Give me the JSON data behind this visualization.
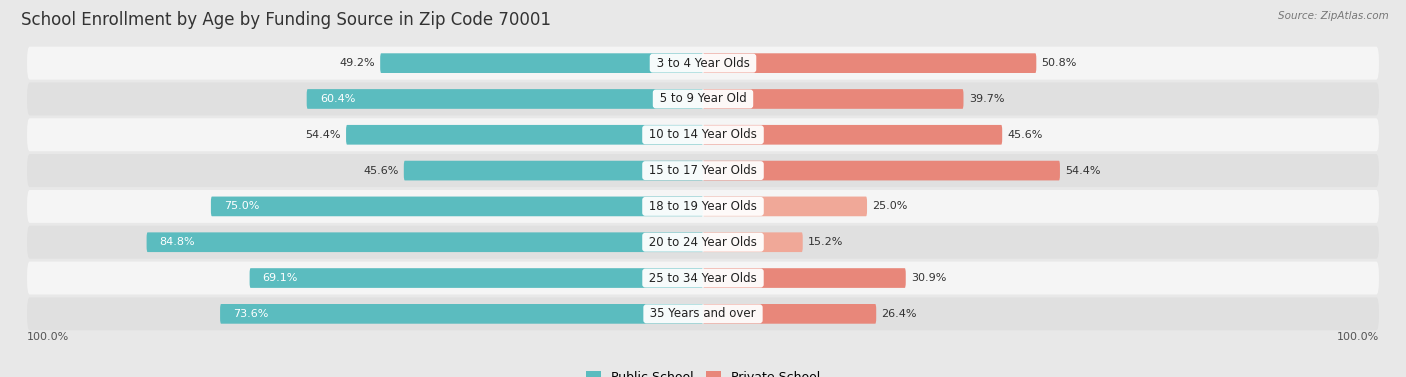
{
  "title": "School Enrollment by Age by Funding Source in Zip Code 70001",
  "source": "Source: ZipAtlas.com",
  "categories": [
    "3 to 4 Year Olds",
    "5 to 9 Year Old",
    "10 to 14 Year Olds",
    "15 to 17 Year Olds",
    "18 to 19 Year Olds",
    "20 to 24 Year Olds",
    "25 to 34 Year Olds",
    "35 Years and over"
  ],
  "public_values": [
    49.2,
    60.4,
    54.4,
    45.6,
    75.0,
    84.8,
    69.1,
    73.6
  ],
  "private_values": [
    50.8,
    39.7,
    45.6,
    54.4,
    25.0,
    15.2,
    30.9,
    26.4
  ],
  "public_color": "#5bbcbf",
  "private_color": "#e8877a",
  "private_color_light": "#f0a898",
  "bg_color": "#e8e8e8",
  "row_bg_light": "#f5f5f5",
  "row_bg_dark": "#e0e0e0",
  "title_fontsize": 12,
  "label_fontsize": 8.5,
  "annotation_fontsize": 8,
  "legend_fontsize": 9,
  "inside_label_threshold": 60
}
